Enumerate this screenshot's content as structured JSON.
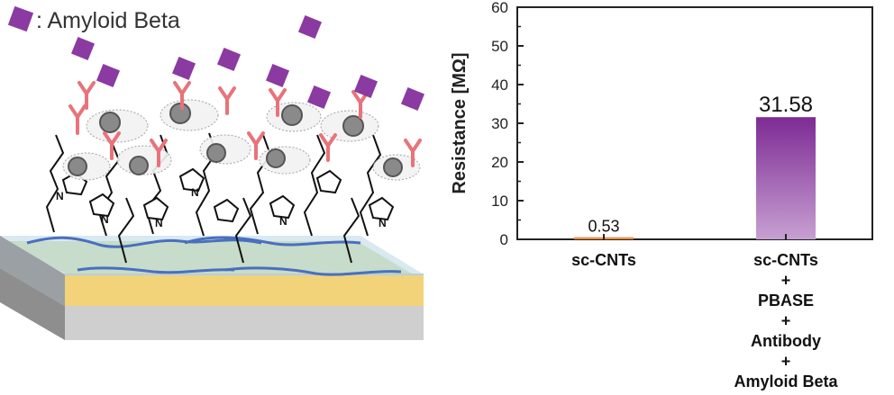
{
  "illustration": {
    "legend_text": ": Amyloid Beta",
    "legend_marker_color": "#8b3aa2",
    "triazole_atoms": [
      "N",
      "N",
      "N",
      "N",
      "N",
      "N"
    ],
    "icons": [
      "antibody-icon",
      "pyrene-ring-icon",
      "cnt-line-icon",
      "sensor-substrate-icon"
    ],
    "colors": {
      "amyloid": "#8b3aa2",
      "antibody": "#e8737a",
      "cnt": "#4a6fbe",
      "substrate_top": "#c9ddd2",
      "electrode": "#f2d37a",
      "substrate_side": "#cfcfcf"
    }
  },
  "chart_data": {
    "type": "bar",
    "categories": [
      [
        "sc-CNTs"
      ],
      [
        "sc-CNTs",
        "+",
        "PBASE",
        "+",
        "Antibody",
        "+",
        "Amyloid Beta"
      ]
    ],
    "values": [
      0.53,
      31.58
    ],
    "data_labels": [
      "0.53",
      "31.58"
    ],
    "title": "",
    "xlabel": "",
    "ylabel": "Resistance [MΩ]",
    "ylim": [
      0,
      60
    ],
    "yticks": [
      0,
      10,
      20,
      30,
      40,
      50,
      60
    ],
    "grid": false,
    "bar_colors": [
      {
        "top": "#f07a2a",
        "bottom": "#f09a4e"
      },
      {
        "top": "#7d2b94",
        "bottom": "#c7a0d2"
      }
    ]
  }
}
